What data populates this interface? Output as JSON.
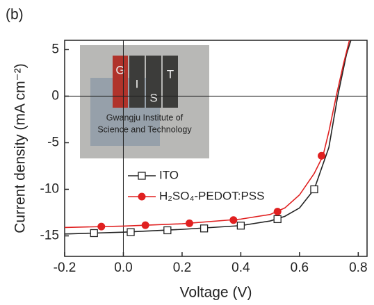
{
  "chart_data": {
    "type": "line",
    "panel_label": "(b)",
    "x_label": "Voltage (V)",
    "y_label": "Current density (mA cm⁻²)",
    "xlim": [
      -0.2,
      0.83
    ],
    "ylim": [
      -17.2,
      6
    ],
    "xticks": [
      -0.2,
      {
        "value": 0,
        "label": "0.0"
      },
      0.2,
      0.4,
      0.6,
      0.8
    ],
    "yticks": [
      5,
      0,
      -5,
      -10,
      -15
    ],
    "zero_lines": true,
    "series": [
      {
        "name": "ITO",
        "color": "#222222",
        "marker": "square",
        "x": [
          -0.2,
          0,
          0.2,
          0.4,
          0.5,
          0.55,
          0.6,
          0.65,
          0.7,
          0.73,
          0.76,
          0.775
        ],
        "values": [
          -14.8,
          -14.6,
          -14.3,
          -13.9,
          -13.4,
          -12.9,
          -12.0,
          -10.0,
          -5.5,
          0,
          4.5,
          6
        ],
        "markers": {
          "x": [
            -0.1,
            0.025,
            0.15,
            0.275,
            0.4,
            0.525,
            0.65
          ],
          "values": [
            -14.7,
            -14.6,
            -14.4,
            -14.2,
            -13.9,
            -13.2,
            -10.0
          ]
        }
      },
      {
        "name": "H₂SO₄-PEDOT:PSS",
        "color": "#e02020",
        "marker": "circle",
        "x": [
          -0.2,
          0,
          0.2,
          0.4,
          0.5,
          0.55,
          0.6,
          0.65,
          0.68,
          0.7,
          0.725,
          0.75,
          0.77
        ],
        "values": [
          -14.1,
          -13.95,
          -13.7,
          -13.2,
          -12.7,
          -12.0,
          -10.6,
          -8.3,
          -6.4,
          -3.8,
          0,
          3.5,
          6
        ],
        "markers": {
          "x": [
            -0.075,
            0.075,
            0.225,
            0.375,
            0.525,
            0.675
          ],
          "values": [
            -14.0,
            -13.85,
            -13.65,
            -13.3,
            -12.4,
            -6.4
          ]
        }
      }
    ],
    "inset": {
      "logo_letters": [
        "G",
        "I",
        "S",
        "T"
      ],
      "caption": [
        "Gwangju Institute of",
        "Science and Technology"
      ]
    }
  }
}
